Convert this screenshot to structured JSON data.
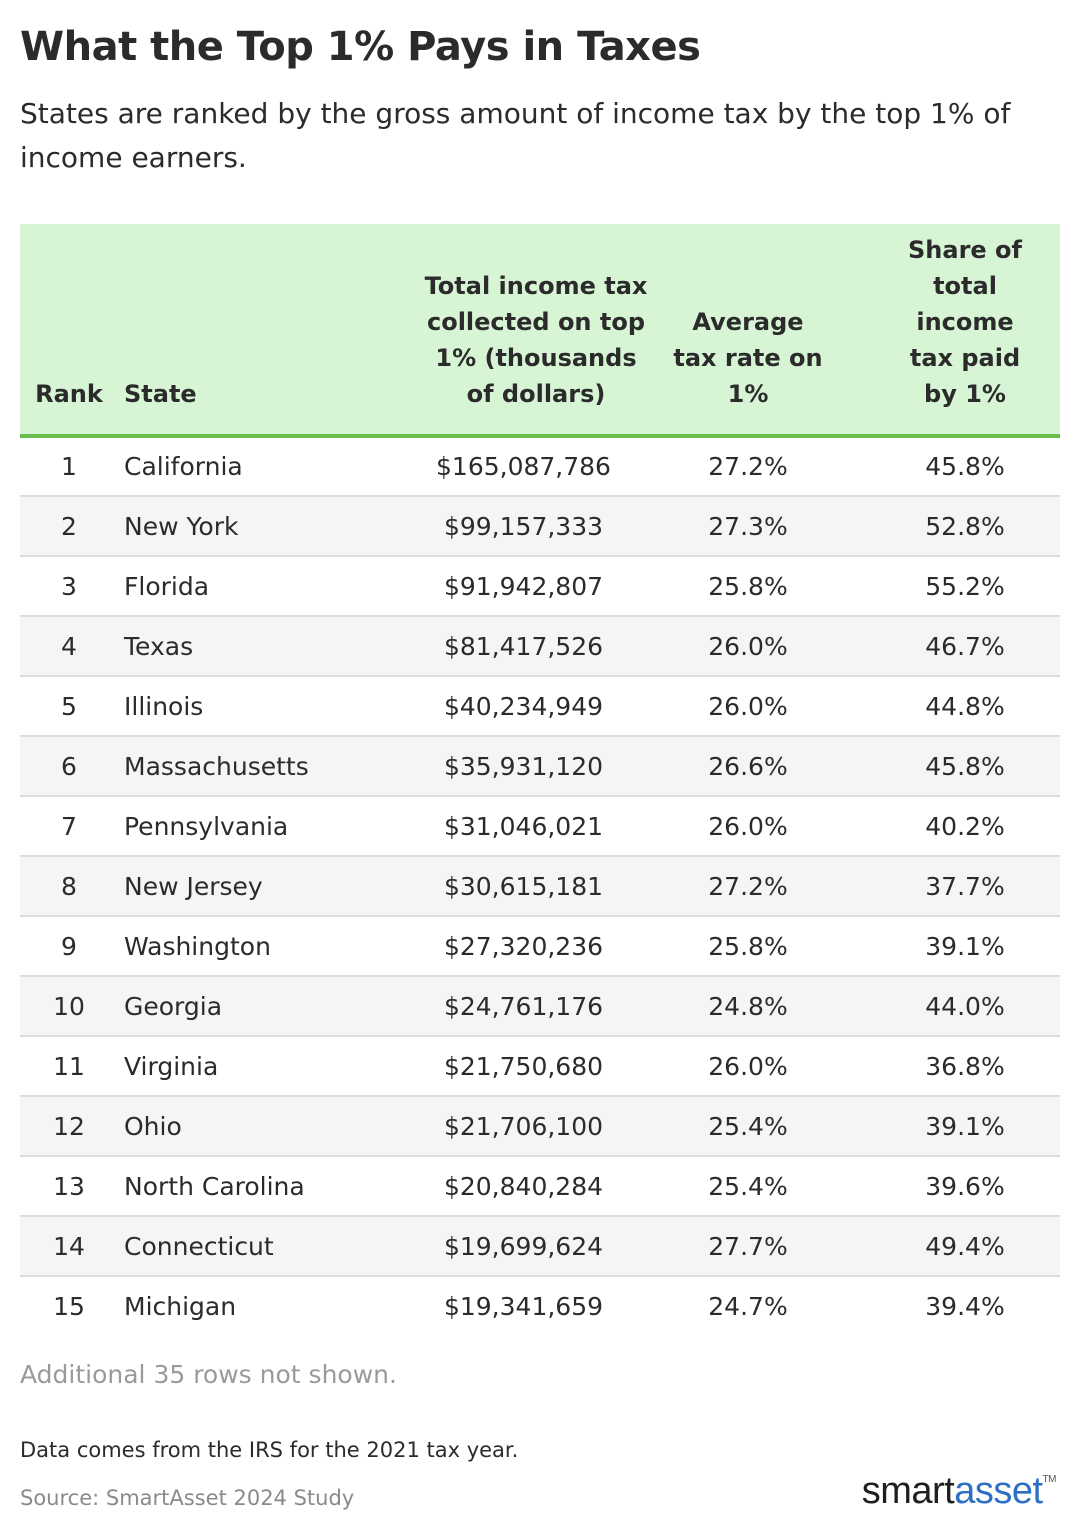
{
  "title": "What the Top 1% Pays in Taxes",
  "subtitle": "States are ranked by the gross amount of income tax by the top 1% of income earners.",
  "chart_data": {
    "type": "table",
    "columns": [
      "Rank",
      "State",
      "Total income tax collected on top 1% (thousands of dollars)",
      "Average tax rate on 1%",
      "Share of total income tax paid by 1%"
    ],
    "rows": [
      [
        "1",
        "California",
        "$165,087,786",
        "27.2%",
        "45.8%"
      ],
      [
        "2",
        "New York",
        "$99,157,333",
        "27.3%",
        "52.8%"
      ],
      [
        "3",
        "Florida",
        "$91,942,807",
        "25.8%",
        "55.2%"
      ],
      [
        "4",
        "Texas",
        "$81,417,526",
        "26.0%",
        "46.7%"
      ],
      [
        "5",
        "Illinois",
        "$40,234,949",
        "26.0%",
        "44.8%"
      ],
      [
        "6",
        "Massachusetts",
        "$35,931,120",
        "26.6%",
        "45.8%"
      ],
      [
        "7",
        "Pennsylvania",
        "$31,046,021",
        "26.0%",
        "40.2%"
      ],
      [
        "8",
        "New Jersey",
        "$30,615,181",
        "27.2%",
        "37.7%"
      ],
      [
        "9",
        "Washington",
        "$27,320,236",
        "25.8%",
        "39.1%"
      ],
      [
        "10",
        "Georgia",
        "$24,761,176",
        "24.8%",
        "44.0%"
      ],
      [
        "11",
        "Virginia",
        "$21,750,680",
        "26.0%",
        "36.8%"
      ],
      [
        "12",
        "Ohio",
        "$21,706,100",
        "25.4%",
        "39.1%"
      ],
      [
        "13",
        "North Carolina",
        "$20,840,284",
        "25.4%",
        "39.6%"
      ],
      [
        "14",
        "Connecticut",
        "$19,699,624",
        "27.7%",
        "49.4%"
      ],
      [
        "15",
        "Michigan",
        "$19,341,659",
        "24.7%",
        "39.4%"
      ]
    ]
  },
  "footer": {
    "rows_note": "Additional 35 rows not shown.",
    "data_note": "Data comes from the IRS for the 2021 tax year.",
    "source": "Source: SmartAsset 2024 Study"
  },
  "logo": {
    "part1": "smart",
    "part2": "asset",
    "tm": "TM"
  },
  "colors": {
    "header_bg": "#d7f5d5",
    "header_rule": "#6bbf4e",
    "stripe": "#f5f5f5",
    "logo_blue": "#2d6fc4"
  }
}
